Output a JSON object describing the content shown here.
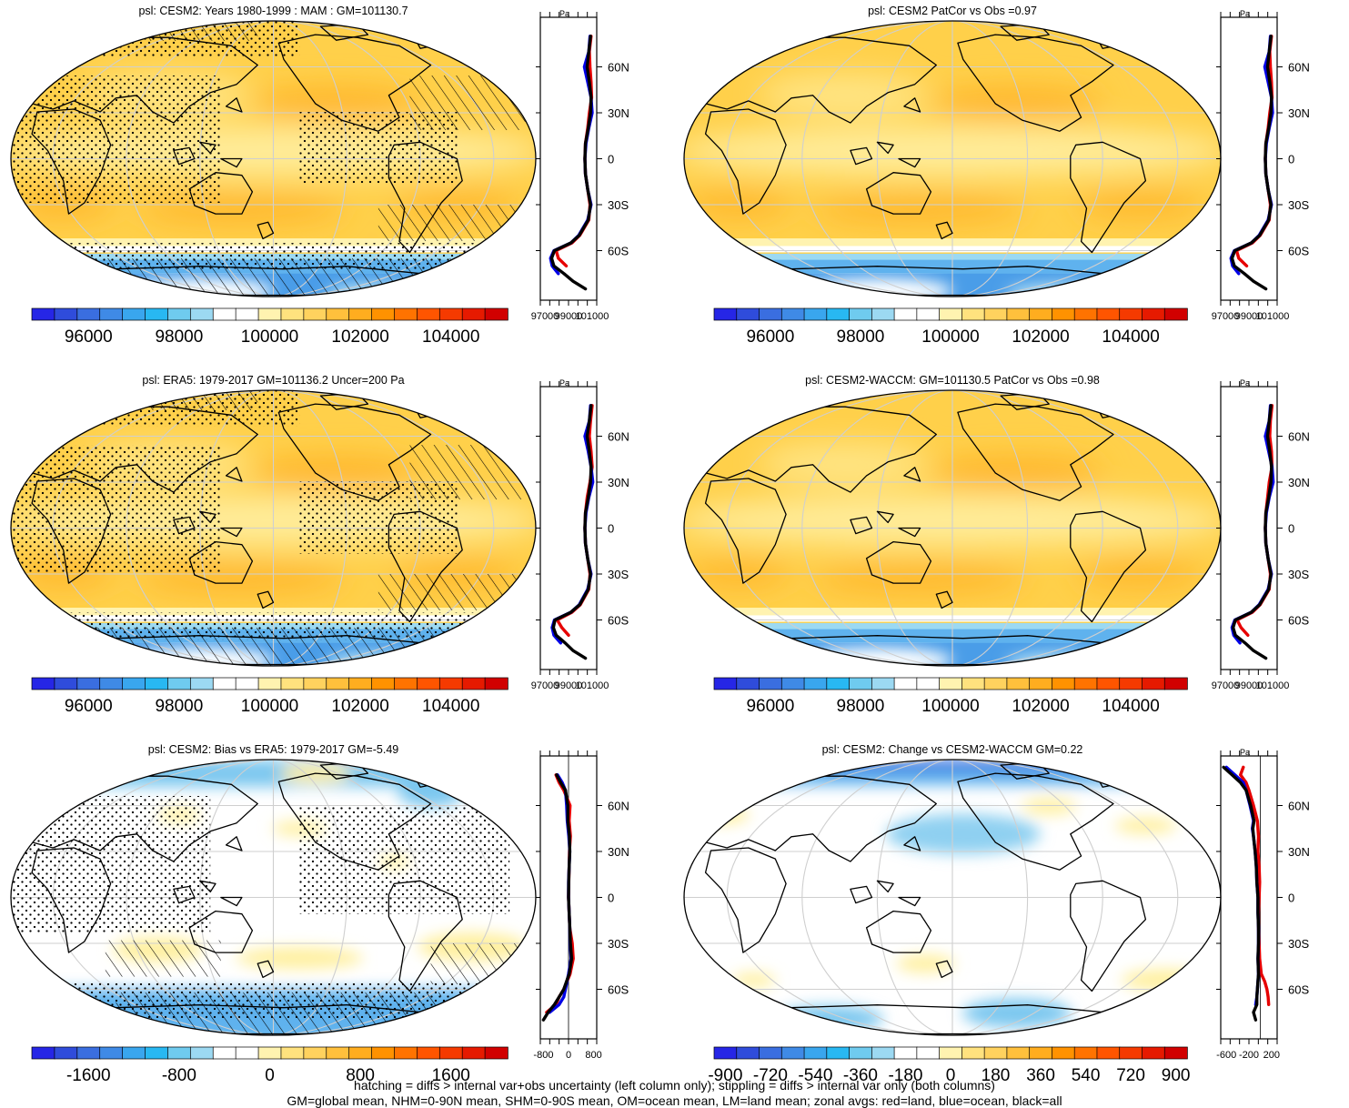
{
  "figure": {
    "colors": {
      "land_line": "#000000",
      "grid": "#cfcfcf",
      "zonal_land": "#e60000",
      "zonal_ocean": "#0000e6",
      "zonal_all": "#000000"
    }
  },
  "colorbars": {
    "abs": {
      "colors": [
        "#2626e6",
        "#2f4cdb",
        "#3a6ee0",
        "#3f8ae6",
        "#39a6ee",
        "#28b8f2",
        "#6fcbef",
        "#9cd9f2",
        "#ffffff",
        "#ffffff",
        "#fff3b0",
        "#ffe27e",
        "#ffd25e",
        "#ffc03c",
        "#ffad1f",
        "#ff9200",
        "#ff7300",
        "#ff5500",
        "#f53a00",
        "#e61a00",
        "#d10000"
      ],
      "labels": [
        "96000",
        "98000",
        "100000",
        "102000",
        "104000"
      ]
    },
    "diff_left": {
      "colors": [
        "#2626e6",
        "#2f4cdb",
        "#3a6ee0",
        "#3f8ae6",
        "#39a6ee",
        "#28b8f2",
        "#6fcbef",
        "#9cd9f2",
        "#ffffff",
        "#ffffff",
        "#fff3b0",
        "#ffe27e",
        "#ffd25e",
        "#ffc03c",
        "#ffad1f",
        "#ff9200",
        "#ff7300",
        "#ff5500",
        "#f53a00",
        "#e61a00",
        "#d10000"
      ],
      "labels": [
        "-1600",
        "-800",
        "0",
        "800",
        "1600"
      ]
    },
    "diff_right": {
      "colors": [
        "#2626e6",
        "#2f4cdb",
        "#3a6ee0",
        "#3f8ae6",
        "#39a6ee",
        "#28b8f2",
        "#6fcbef",
        "#9cd9f2",
        "#ffffff",
        "#ffffff",
        "#fff3b0",
        "#ffe27e",
        "#ffd25e",
        "#ffc03c",
        "#ffad1f",
        "#ff9200",
        "#ff7300",
        "#ff5500",
        "#f53a00",
        "#e61a00",
        "#d10000"
      ],
      "labels": [
        "-900",
        "-720",
        "-540",
        "-360",
        "-180",
        "0",
        "180",
        "360",
        "540",
        "720",
        "900"
      ]
    }
  },
  "chart_data": [
    {
      "type": "heatmap",
      "title": "psl: CESM2: Years 1980-1999 : MAM : GM=101130.7",
      "variable": "psl",
      "field": "abs",
      "hatch": true,
      "stipple": true,
      "zonal": {
        "unit_label": "Pa",
        "xlim": [
          97000,
          102000
        ],
        "xticks": [
          "97000",
          "99000",
          "101000"
        ],
        "lat_ticks": [
          60,
          30,
          0,
          -30,
          -60
        ],
        "lat_labels": [
          "60N",
          "30N",
          "0",
          "30S",
          "60S"
        ],
        "lat": [
          80,
          70,
          60,
          50,
          40,
          30,
          20,
          10,
          0,
          -10,
          -20,
          -30,
          -40,
          -50,
          -55,
          -60,
          -65,
          -70,
          -75,
          -80,
          -85
        ],
        "land": [
          101500,
          101350,
          101400,
          101500,
          101550,
          101350,
          101200,
          101000,
          100950,
          101000,
          101200,
          101400,
          101300,
          100500,
          99800,
          98400,
          98600,
          99300,
          null,
          null,
          null
        ],
        "ocean": [
          101400,
          101300,
          100900,
          101200,
          101500,
          101600,
          101300,
          101050,
          100950,
          101000,
          101200,
          101500,
          101200,
          100400,
          99700,
          98200,
          97900,
          98050,
          98600,
          null,
          null
        ],
        "all": [
          101450,
          101300,
          101150,
          101350,
          101500,
          101450,
          101250,
          101000,
          100950,
          101000,
          101200,
          101450,
          101250,
          100450,
          99700,
          98250,
          98000,
          98200,
          99100,
          99900,
          101000
        ]
      }
    },
    {
      "type": "heatmap",
      "title": "psl: CESM2 PatCor vs Obs =0.97",
      "variable": "psl",
      "field": "abs",
      "hatch": false,
      "stipple": false,
      "zonal": {
        "unit_label": "Pa",
        "xlim": [
          97000,
          102000
        ],
        "xticks": [
          "97000",
          "99000",
          "101000"
        ],
        "lat_ticks": [
          60,
          30,
          0,
          -30,
          -60
        ],
        "lat_labels": [
          "60N",
          "30N",
          "0",
          "30S",
          "60S"
        ],
        "lat": [
          80,
          70,
          60,
          50,
          40,
          30,
          20,
          10,
          0,
          -10,
          -20,
          -30,
          -40,
          -50,
          -55,
          -60,
          -65,
          -70,
          -75,
          -80,
          -85
        ],
        "land": [
          101500,
          101350,
          101400,
          101500,
          101550,
          101350,
          101200,
          101000,
          100950,
          101000,
          101200,
          101400,
          101300,
          100500,
          99800,
          98400,
          98600,
          99300,
          null,
          null,
          null
        ],
        "ocean": [
          101400,
          101300,
          100900,
          101200,
          101500,
          101600,
          101300,
          101050,
          100950,
          101000,
          101200,
          101500,
          101200,
          100400,
          99700,
          98200,
          97900,
          98050,
          98600,
          null,
          null
        ],
        "all": [
          101450,
          101300,
          101150,
          101350,
          101500,
          101450,
          101250,
          101000,
          100950,
          101000,
          101200,
          101450,
          101250,
          100450,
          99700,
          98250,
          98000,
          98200,
          99100,
          99900,
          101000
        ]
      }
    },
    {
      "type": "heatmap",
      "title": "psl: ERA5: 1979-2017 GM=101136.2 Uncer=200 Pa",
      "variable": "psl",
      "field": "abs",
      "hatch": true,
      "stipple": true,
      "zonal": {
        "unit_label": "Pa",
        "xlim": [
          97000,
          102000
        ],
        "xticks": [
          "97000",
          "99000",
          "101000"
        ],
        "lat_ticks": [
          60,
          30,
          0,
          -30,
          -60
        ],
        "lat_labels": [
          "60N",
          "30N",
          "0",
          "30S",
          "60S"
        ],
        "lat": [
          80,
          70,
          60,
          50,
          40,
          30,
          20,
          10,
          0,
          -10,
          -20,
          -30,
          -40,
          -50,
          -55,
          -60,
          -65,
          -70,
          -75,
          -80,
          -85
        ],
        "land": [
          101600,
          101450,
          101350,
          101500,
          101600,
          101400,
          101150,
          101000,
          100950,
          101000,
          101200,
          101400,
          101300,
          100550,
          99800,
          98500,
          98900,
          99500,
          null,
          null,
          null
        ],
        "ocean": [
          101450,
          101350,
          100950,
          101250,
          101500,
          101650,
          101300,
          101050,
          100950,
          101000,
          101200,
          101500,
          101200,
          100450,
          99700,
          98250,
          98050,
          98200,
          98800,
          null,
          null
        ],
        "all": [
          101500,
          101350,
          101150,
          101350,
          101500,
          101450,
          101250,
          101000,
          100950,
          101000,
          101200,
          101450,
          101250,
          100500,
          99700,
          98300,
          98150,
          98400,
          99200,
          99900,
          101000
        ]
      }
    },
    {
      "type": "heatmap",
      "title": "psl: CESM2-WACCM: GM=101130.5 PatCor vs Obs =0.98",
      "variable": "psl",
      "field": "abs",
      "hatch": false,
      "stipple": false,
      "zonal": {
        "unit_label": "Pa",
        "xlim": [
          97000,
          102000
        ],
        "xticks": [
          "97000",
          "99000",
          "101000"
        ],
        "lat_ticks": [
          60,
          30,
          0,
          -30,
          -60
        ],
        "lat_labels": [
          "60N",
          "30N",
          "0",
          "30S",
          "60S"
        ],
        "lat": [
          80,
          70,
          60,
          50,
          40,
          30,
          20,
          10,
          0,
          -10,
          -20,
          -30,
          -40,
          -50,
          -55,
          -60,
          -65,
          -70,
          -75,
          -80,
          -85
        ],
        "land": [
          101550,
          101400,
          101350,
          101500,
          101550,
          101300,
          101150,
          101000,
          100950,
          101000,
          101200,
          101400,
          101300,
          100500,
          99800,
          98450,
          98800,
          99400,
          null,
          null,
          null
        ],
        "ocean": [
          101400,
          101300,
          100950,
          101250,
          101550,
          101650,
          101300,
          101050,
          100950,
          101000,
          101200,
          101500,
          101200,
          100400,
          99700,
          98250,
          98000,
          98150,
          98700,
          null,
          null
        ],
        "all": [
          101450,
          101300,
          101150,
          101350,
          101500,
          101450,
          101250,
          101000,
          100950,
          101000,
          101200,
          101450,
          101250,
          100450,
          99700,
          98300,
          98100,
          98300,
          99150,
          99900,
          101000
        ]
      }
    },
    {
      "type": "heatmap",
      "title": "psl: CESM2: Bias vs ERA5: 1979-2017 GM=-5.49",
      "variable": "psl",
      "field": "bias",
      "hatch": true,
      "stipple": true,
      "zonal": {
        "unit_label": "",
        "xlim": [
          -900,
          900
        ],
        "xticks": [
          "-800",
          "0",
          "800"
        ],
        "lat_ticks": [
          60,
          30,
          0,
          -30,
          -60
        ],
        "lat_labels": [
          "60N",
          "30N",
          "0",
          "30S",
          "60S"
        ],
        "lat": [
          80,
          75,
          70,
          60,
          50,
          40,
          30,
          20,
          10,
          0,
          -10,
          -20,
          -30,
          -40,
          -50,
          -60,
          -65,
          -70,
          -75,
          -80
        ],
        "land": [
          -400,
          -300,
          -150,
          50,
          20,
          60,
          30,
          20,
          10,
          0,
          20,
          40,
          120,
          150,
          50,
          -150,
          -300,
          -400,
          -700,
          null
        ],
        "ocean": [
          -350,
          -200,
          -100,
          -60,
          -40,
          10,
          40,
          20,
          0,
          0,
          20,
          40,
          50,
          80,
          0,
          -100,
          -150,
          -300,
          -600,
          null
        ],
        "all": [
          -380,
          -250,
          -100,
          -20,
          -20,
          30,
          40,
          20,
          5,
          0,
          20,
          40,
          60,
          100,
          20,
          -150,
          -300,
          -450,
          -650,
          -800
        ]
      }
    },
    {
      "type": "heatmap",
      "title": "psl: CESM2: Change vs CESM2-WACCM GM=0.22",
      "variable": "psl",
      "field": "change",
      "hatch": false,
      "stipple": false,
      "zonal": {
        "unit_label": "Pa",
        "xlim": [
          -700,
          300
        ],
        "xticks": [
          "-600",
          "-200",
          "200"
        ],
        "lat_ticks": [
          60,
          30,
          0,
          -30,
          -60
        ],
        "lat_labels": [
          "60N",
          "30N",
          "0",
          "30S",
          "60S"
        ],
        "lat": [
          85,
          80,
          75,
          70,
          60,
          50,
          45,
          40,
          30,
          20,
          10,
          0,
          -10,
          -20,
          -30,
          -40,
          -50,
          -55,
          -60,
          -65,
          -70,
          -75,
          -80
        ],
        "land": [
          -300,
          -350,
          -250,
          -200,
          -120,
          -50,
          -40,
          -30,
          -40,
          -20,
          -10,
          -20,
          -30,
          -30,
          -20,
          -10,
          20,
          80,
          120,
          140,
          150,
          null,
          null
        ],
        "ocean": [
          -600,
          -450,
          -300,
          -250,
          -180,
          -120,
          -140,
          -120,
          -90,
          -70,
          -60,
          -40,
          -40,
          -30,
          -30,
          -40,
          -30,
          -40,
          -50,
          -60,
          -80,
          null,
          null
        ],
        "all": [
          -650,
          -500,
          -350,
          -250,
          -170,
          -110,
          -130,
          -120,
          -90,
          -70,
          -60,
          -40,
          -40,
          -30,
          -30,
          -40,
          -30,
          -40,
          -50,
          -60,
          -60,
          -120,
          -80
        ]
      }
    }
  ],
  "notes": {
    "line1": "hatching = diffs > internal var+obs uncertainty (left column only); stippling = diffs > internal var only (both columns)",
    "line2": "GM=global mean, NHM=0-90N mean, SHM=0-90S mean, OM=ocean mean, LM=land mean; zonal avgs: red=land, blue=ocean, black=all"
  }
}
